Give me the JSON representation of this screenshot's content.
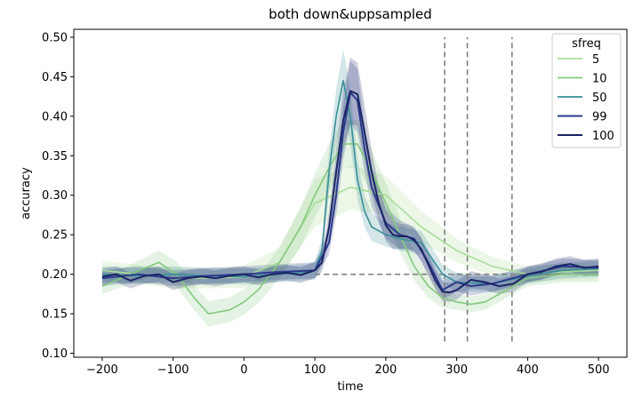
{
  "chart_data": {
    "type": "line",
    "title": "both down&uppsampled",
    "xlabel": "time",
    "ylabel": "accuracy",
    "xlim": [
      -240,
      540
    ],
    "ylim": [
      0.095,
      0.51
    ],
    "xticks": [
      -200,
      -100,
      0,
      100,
      200,
      300,
      400,
      500
    ],
    "yticks": [
      0.1,
      0.15,
      0.2,
      0.25,
      0.3,
      0.35,
      0.4,
      0.45,
      0.5
    ],
    "xtick_labels": [
      "−200",
      "−100",
      "0",
      "100",
      "200",
      "300",
      "400",
      "500"
    ],
    "ytick_labels": [
      "0.10",
      "0.15",
      "0.20",
      "0.25",
      "0.30",
      "0.35",
      "0.40",
      "0.45",
      "0.50"
    ],
    "grid": false,
    "legend": {
      "title": "sfreq",
      "position": "top-right"
    },
    "series": [
      {
        "name": "5",
        "color": "#a8dc98",
        "x": [
          -200,
          -150,
          -100,
          -50,
          0,
          50,
          100,
          150,
          200,
          250,
          300,
          350,
          400,
          450,
          500
        ],
        "y": [
          0.205,
          0.2,
          0.195,
          0.195,
          0.197,
          0.215,
          0.29,
          0.31,
          0.3,
          0.26,
          0.23,
          0.21,
          0.2,
          0.203,
          0.205
        ],
        "ci": [
          0.012,
          0.012,
          0.013,
          0.013,
          0.014,
          0.018,
          0.03,
          0.028,
          0.025,
          0.02,
          0.015,
          0.012,
          0.01,
          0.01,
          0.01
        ]
      },
      {
        "name": "10",
        "color": "#84c87e",
        "x": [
          -200,
          -160,
          -120,
          -95,
          -70,
          -50,
          -20,
          0,
          20,
          50,
          80,
          100,
          120,
          140,
          160,
          180,
          200,
          220,
          240,
          260,
          280,
          300,
          320,
          340,
          360,
          380,
          400,
          450,
          500
        ],
        "y": [
          0.185,
          0.2,
          0.215,
          0.2,
          0.17,
          0.15,
          0.155,
          0.165,
          0.18,
          0.215,
          0.26,
          0.3,
          0.335,
          0.365,
          0.365,
          0.33,
          0.29,
          0.25,
          0.21,
          0.185,
          0.17,
          0.165,
          0.162,
          0.165,
          0.175,
          0.185,
          0.195,
          0.2,
          0.2
        ],
        "ci": [
          0.01,
          0.012,
          0.015,
          0.016,
          0.016,
          0.016,
          0.016,
          0.016,
          0.017,
          0.02,
          0.025,
          0.028,
          0.03,
          0.03,
          0.03,
          0.028,
          0.025,
          0.022,
          0.018,
          0.015,
          0.012,
          0.01,
          0.01,
          0.01,
          0.01,
          0.01,
          0.01,
          0.01,
          0.01
        ]
      },
      {
        "name": "50",
        "color": "#3a8f98",
        "x": [
          -200,
          -150,
          -100,
          -50,
          0,
          50,
          90,
          100,
          110,
          120,
          130,
          140,
          150,
          160,
          170,
          180,
          200,
          220,
          250,
          280,
          300,
          350,
          400,
          450,
          500
        ],
        "y": [
          0.2,
          0.198,
          0.2,
          0.198,
          0.197,
          0.2,
          0.203,
          0.205,
          0.23,
          0.33,
          0.4,
          0.445,
          0.4,
          0.32,
          0.28,
          0.26,
          0.25,
          0.245,
          0.24,
          0.2,
          0.19,
          0.188,
          0.198,
          0.205,
          0.207
        ],
        "ci": [
          0.01,
          0.01,
          0.01,
          0.01,
          0.01,
          0.01,
          0.01,
          0.012,
          0.015,
          0.025,
          0.035,
          0.04,
          0.035,
          0.025,
          0.02,
          0.018,
          0.015,
          0.015,
          0.015,
          0.012,
          0.012,
          0.01,
          0.01,
          0.01,
          0.01
        ]
      },
      {
        "name": "99",
        "color": "#2b3b8c",
        "x": [
          -200,
          -150,
          -100,
          -50,
          0,
          50,
          100,
          120,
          130,
          140,
          150,
          160,
          170,
          180,
          200,
          220,
          240,
          260,
          280,
          300,
          320,
          350,
          400,
          450,
          500
        ],
        "y": [
          0.195,
          0.2,
          0.195,
          0.198,
          0.2,
          0.203,
          0.205,
          0.24,
          0.3,
          0.38,
          0.43,
          0.42,
          0.36,
          0.31,
          0.265,
          0.25,
          0.245,
          0.215,
          0.18,
          0.19,
          0.185,
          0.188,
          0.2,
          0.21,
          0.208
        ],
        "ci": [
          0.01,
          0.01,
          0.01,
          0.01,
          0.01,
          0.01,
          0.01,
          0.015,
          0.025,
          0.035,
          0.04,
          0.04,
          0.03,
          0.025,
          0.02,
          0.018,
          0.015,
          0.015,
          0.012,
          0.012,
          0.012,
          0.01,
          0.01,
          0.01,
          0.01
        ]
      },
      {
        "name": "100",
        "color": "#1c2566",
        "x": [
          -200,
          -180,
          -160,
          -140,
          -120,
          -100,
          -80,
          -60,
          -40,
          -20,
          0,
          20,
          40,
          60,
          80,
          100,
          110,
          120,
          130,
          140,
          150,
          160,
          170,
          180,
          190,
          200,
          210,
          220,
          230,
          240,
          250,
          260,
          270,
          280,
          290,
          300,
          320,
          340,
          360,
          380,
          400,
          420,
          440,
          460,
          480,
          500
        ],
        "y": [
          0.197,
          0.2,
          0.192,
          0.198,
          0.2,
          0.19,
          0.195,
          0.197,
          0.195,
          0.198,
          0.2,
          0.196,
          0.2,
          0.202,
          0.199,
          0.205,
          0.215,
          0.26,
          0.33,
          0.395,
          0.432,
          0.428,
          0.38,
          0.33,
          0.29,
          0.262,
          0.25,
          0.248,
          0.248,
          0.243,
          0.232,
          0.212,
          0.192,
          0.178,
          0.177,
          0.18,
          0.193,
          0.19,
          0.185,
          0.188,
          0.2,
          0.203,
          0.21,
          0.213,
          0.208,
          0.21
        ],
        "ci": [
          0.01,
          0.01,
          0.01,
          0.01,
          0.01,
          0.01,
          0.01,
          0.01,
          0.01,
          0.01,
          0.01,
          0.01,
          0.01,
          0.01,
          0.01,
          0.01,
          0.012,
          0.02,
          0.03,
          0.038,
          0.042,
          0.04,
          0.035,
          0.028,
          0.022,
          0.02,
          0.018,
          0.016,
          0.015,
          0.015,
          0.015,
          0.014,
          0.012,
          0.012,
          0.012,
          0.012,
          0.011,
          0.01,
          0.01,
          0.01,
          0.01,
          0.01,
          0.01,
          0.01,
          0.01,
          0.01
        ]
      }
    ],
    "reference_lines": {
      "horizontal": {
        "y": 0.2,
        "x_from": 100,
        "x_to": 500,
        "color": "#808080"
      },
      "vertical": {
        "x": [
          283,
          315,
          378
        ],
        "y_from": 0.115,
        "y_to": 0.5,
        "color": "#808080"
      }
    }
  }
}
